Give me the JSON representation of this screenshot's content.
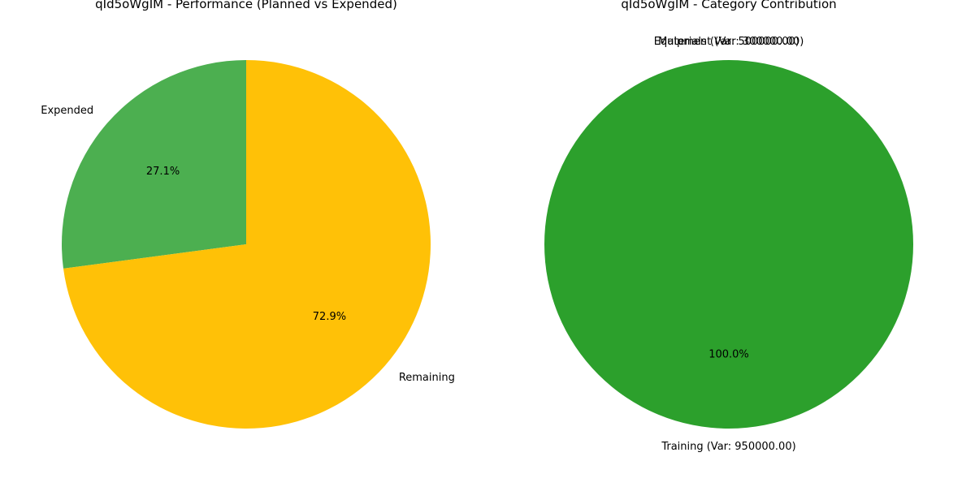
{
  "chart_data": [
    {
      "type": "pie",
      "title": "qId5oWgIM - Performance (Planned vs Expended)",
      "labels": [
        "Expended",
        "Remaining"
      ],
      "values": [
        27.1,
        72.9
      ],
      "pct_labels": [
        "27.1%",
        "72.9%"
      ],
      "colors": [
        "#4caf50",
        "#ffc107"
      ],
      "start_angle": 90
    },
    {
      "type": "pie",
      "title": "qId5oWgIM - Category Contribution",
      "labels": [
        "Equipment (Var: 300000.00)",
        "Materials (Var: 500000.00)",
        "Training (Var: 950000.00)"
      ],
      "values": [
        0.0,
        0.0,
        100.0
      ],
      "pct_labels": [
        "0.0%",
        "0.0%",
        "100.0%"
      ],
      "colors": [
        "#1f77b4",
        "#ff7f0e",
        "#2ca02c"
      ],
      "start_angle": 90
    }
  ]
}
